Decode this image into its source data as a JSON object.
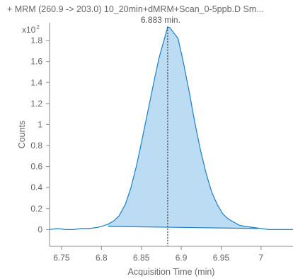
{
  "title": "+ MRM (260.9 -> 203.0) 10_20min+dMRM+Scan_0-5ppb.D  Sm...",
  "scale_base": "x10",
  "scale_exp": "2",
  "colors": {
    "fill": "#bcdcf3",
    "line": "#1b7fc4",
    "axis": "#888888",
    "marker": "#333333"
  },
  "chart_data": {
    "type": "area",
    "title": "+ MRM (260.9 -> 203.0) 10_20min+dMRM+Scan_0-5ppb.D  Sm...",
    "xlabel": "Acquisition Time (min)",
    "ylabel": "Counts",
    "xlim": [
      6.735,
      7.04
    ],
    "ylim": [
      -0.16,
      1.97
    ],
    "x_ticks": [
      6.75,
      6.8,
      6.85,
      6.9,
      6.95,
      7
    ],
    "x_tick_labels": [
      "6.75",
      "6.8",
      "6.85",
      "6.9",
      "6.95",
      "7"
    ],
    "y_ticks": [
      0,
      0.2,
      0.4,
      0.6,
      0.8,
      1,
      1.2,
      1.4,
      1.6,
      1.8
    ],
    "y_tick_labels": [
      "0",
      "0.2",
      "0.4",
      "0.6",
      "0.8",
      "1",
      "1.2",
      "1.4",
      "1.6",
      "1.8"
    ],
    "grid": false,
    "series": [
      {
        "x": [
          6.735,
          6.745,
          6.755,
          6.765,
          6.775,
          6.785,
          6.795,
          6.8,
          6.808,
          6.815,
          6.822,
          6.83,
          6.837,
          6.844,
          6.851,
          6.858,
          6.865,
          6.872,
          6.879,
          6.883,
          6.886,
          6.89,
          6.896,
          6.903,
          6.91,
          6.917,
          6.924,
          6.931,
          6.938,
          6.945,
          6.952,
          6.959,
          6.966,
          6.973,
          6.98,
          6.99,
          7.0,
          7.01,
          7.02,
          7.03,
          7.04
        ],
        "y": [
          0.0,
          0.01,
          0.0,
          0.0,
          0.01,
          0.01,
          0.02,
          0.03,
          0.05,
          0.08,
          0.13,
          0.24,
          0.4,
          0.61,
          0.86,
          1.12,
          1.38,
          1.63,
          1.82,
          1.93,
          1.92,
          1.88,
          1.82,
          1.58,
          1.31,
          1.02,
          0.76,
          0.54,
          0.36,
          0.24,
          0.15,
          0.1,
          0.07,
          0.04,
          0.03,
          0.02,
          0.01,
          0.0,
          0.0,
          0.0,
          0.0
        ]
      }
    ],
    "baseline": {
      "x": [
        6.808,
        6.997
      ],
      "y": [
        0.03,
        0.01
      ]
    },
    "apex": {
      "x": 6.883,
      "label": "6.883 min."
    }
  }
}
